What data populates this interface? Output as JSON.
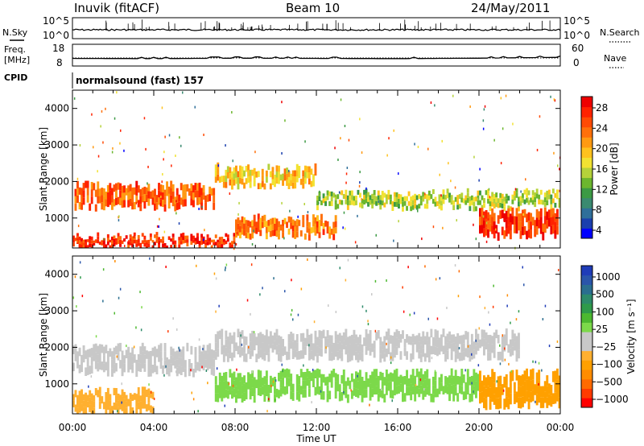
{
  "header": {
    "station": "Inuvik (fitACF)",
    "beam": "Beam 10",
    "date": "24/May/2011"
  },
  "left_labels": {
    "nsky": "N.Sky",
    "freq_line1": "Freq.",
    "freq_line2": "[MHz]",
    "cpid": "CPID"
  },
  "right_labels": {
    "nsearch": "N.Search",
    "nave": "Nave"
  },
  "cpid_label": "normalsound (fast) 157",
  "noise_panel": {
    "left_ticks": [
      "10^5",
      "10^0"
    ],
    "right_ticks": [
      "10^5",
      "10^0"
    ]
  },
  "freq_panel": {
    "left_ticks": [
      "18",
      "8"
    ],
    "right_ticks": [
      "60",
      "0"
    ]
  },
  "colorbars": {
    "power": {
      "label": "Power [dB]",
      "ticks": [
        "28",
        "24",
        "20",
        "16",
        "12",
        "8",
        "4"
      ],
      "colors": [
        "#0000ff",
        "#1a3fae",
        "#2f6f9a",
        "#3a8a70",
        "#3c9a44",
        "#6cb62e",
        "#b5d23a",
        "#f2e232",
        "#ffc21e",
        "#ff9a12",
        "#ff700a",
        "#ff4a04",
        "#ff2200",
        "#ee0000"
      ]
    },
    "velocity": {
      "label": "Velocity [m s⁻¹]",
      "ticks": [
        "1000",
        "500",
        "100",
        "25",
        "−25",
        "−100",
        "−500",
        "−1000"
      ],
      "colors": [
        "#ff0000",
        "#ff3b00",
        "#ff6a00",
        "#ff8c00",
        "#ffa000",
        "#ffb030",
        "#c8c8c8",
        "#c8c8c8",
        "#7cd94a",
        "#4cb830",
        "#2f9a4a",
        "#2d8a6a",
        "#2a6e8f",
        "#2a55aa",
        "#1f3cb8"
      ]
    }
  },
  "chart_data": [
    {
      "type": "line",
      "name": "noise",
      "title": "Inuvik (fitACF)",
      "x": [
        "00:00",
        "04:00",
        "08:00",
        "12:00",
        "16:00",
        "20:00",
        "00:00"
      ],
      "series": [
        {
          "name": "N.Sky",
          "values": [
            3.2,
            3.0,
            3.1,
            3.3,
            3.2,
            3.0,
            3.1
          ]
        },
        {
          "name": "N.Search",
          "values": [
            4.0,
            4.1,
            4.5,
            4.6,
            4.4,
            4.8,
            5.0
          ]
        }
      ]
    },
    {
      "type": "line",
      "name": "frequency",
      "x": [
        "00:00",
        "04:00",
        "08:00",
        "12:00",
        "16:00",
        "20:00",
        "00:00"
      ],
      "series": [
        {
          "name": "Freq.",
          "values": [
            11.5,
            11.4,
            11.6,
            11.5,
            11.4,
            11.6,
            12.0
          ]
        },
        {
          "name": "Nave",
          "values": [
            20,
            20,
            20,
            20,
            20,
            20,
            20
          ]
        }
      ],
      "ylim_left": [
        8,
        18
      ],
      "ylim_right": [
        0,
        60
      ]
    },
    {
      "type": "heatmap",
      "name": "power",
      "xlabel": "",
      "ylabel": "Slant Range [km]",
      "x_ticks": [
        "00:00",
        "04:00",
        "08:00",
        "12:00",
        "16:00",
        "20:00",
        "00:00"
      ],
      "y_ticks": [
        1000,
        2000,
        3000,
        4000
      ],
      "ylim": [
        180,
        4500
      ],
      "colorbar": "Power [dB]",
      "clim": [
        0,
        30
      ],
      "bands": [
        {
          "t0": 0.0,
          "t1": 7.0,
          "r0": 1300,
          "r1": 1900,
          "level": 24
        },
        {
          "t0": 7.0,
          "t1": 12.0,
          "r0": 1900,
          "r1": 2400,
          "level": 18
        },
        {
          "t0": 12.0,
          "t1": 24.0,
          "r0": 1300,
          "r1": 1700,
          "level": 14
        },
        {
          "t0": 0.0,
          "t1": 8.0,
          "r0": 200,
          "r1": 500,
          "level": 26
        },
        {
          "t0": 8.0,
          "t1": 13.0,
          "r0": 500,
          "r1": 1000,
          "level": 22
        },
        {
          "t0": 20.0,
          "t1": 24.0,
          "r0": 500,
          "r1": 1200,
          "level": 26
        }
      ]
    },
    {
      "type": "heatmap",
      "name": "velocity",
      "xlabel": "Time UT",
      "ylabel": "Slant Range [km]",
      "x_ticks": [
        "00:00",
        "04:00",
        "08:00",
        "12:00",
        "16:00",
        "20:00",
        "00:00"
      ],
      "y_ticks": [
        1000,
        2000,
        3000,
        4000
      ],
      "ylim": [
        180,
        4500
      ],
      "colorbar": "Velocity [m s⁻¹]",
      "clim": [
        -1000,
        1000
      ],
      "bands": [
        {
          "t0": 0.0,
          "t1": 7.0,
          "r0": 1300,
          "r1": 2000,
          "level": 0
        },
        {
          "t0": 7.0,
          "t1": 22.0,
          "r0": 1700,
          "r1": 2400,
          "level": 0
        },
        {
          "t0": 7.0,
          "t1": 20.0,
          "r0": 600,
          "r1": 1300,
          "level": 150
        },
        {
          "t0": 0.0,
          "t1": 4.0,
          "r0": 200,
          "r1": 800,
          "level": -300
        },
        {
          "t0": 20.0,
          "t1": 24.0,
          "r0": 400,
          "r1": 1300,
          "level": -400
        }
      ]
    }
  ]
}
